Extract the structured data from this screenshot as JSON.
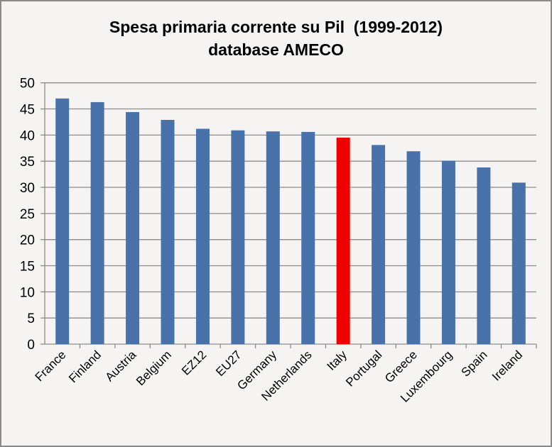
{
  "chart_data": {
    "type": "bar",
    "title": "Spesa primaria corrente su Pil  (1999-2012)",
    "subtitle": "database AMECO",
    "xlabel": "",
    "ylabel": "",
    "ylim": [
      0,
      50
    ],
    "yticks": [
      0,
      5,
      10,
      15,
      20,
      25,
      30,
      35,
      40,
      45,
      50
    ],
    "grid": true,
    "legend": "none",
    "categories": [
      "France",
      "Finland",
      "Austria",
      "Belgium",
      "EZ12",
      "EU27",
      "Germany",
      "Netherlands",
      "Italy",
      "Portugal",
      "Greece",
      "Luxembourg",
      "Spain",
      "Ireland"
    ],
    "values": [
      47.0,
      46.3,
      44.4,
      42.9,
      41.2,
      40.9,
      40.7,
      40.6,
      39.5,
      38.1,
      36.9,
      35.1,
      33.8,
      30.9
    ],
    "colors": {
      "default": "#4a72aa",
      "highlight": "#ee0000",
      "grid": "#8c8c8c"
    },
    "highlight_category": "Italy"
  }
}
